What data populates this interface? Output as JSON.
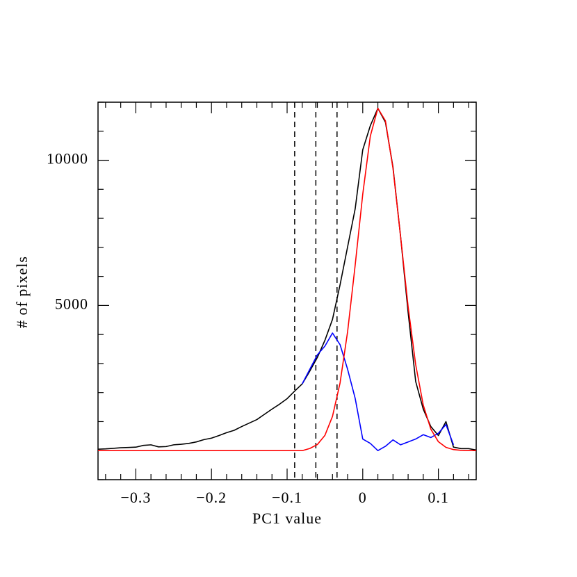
{
  "chart_data": {
    "type": "line",
    "x_label": "PC1 value",
    "y_label": "# of pixels",
    "x": [
      -0.35,
      -0.34,
      -0.33,
      -0.32,
      -0.31,
      -0.3,
      -0.29,
      -0.28,
      -0.27,
      -0.26,
      -0.25,
      -0.24,
      -0.23,
      -0.22,
      -0.21,
      -0.2,
      -0.19,
      -0.18,
      -0.17,
      -0.16,
      -0.15,
      -0.14,
      -0.13,
      -0.12,
      -0.11,
      -0.1,
      -0.09,
      -0.08,
      -0.07,
      -0.06,
      -0.05,
      -0.04,
      -0.03,
      -0.02,
      -0.01,
      0,
      0.01,
      0.02,
      0.03,
      0.04,
      0.05,
      0.06,
      0.07,
      0.08,
      0.09,
      0.1,
      0.11,
      0.12,
      0.13,
      0.14,
      0.15
    ],
    "series": [
      {
        "color": "#000000",
        "values": [
          50,
          60,
          80,
          100,
          110,
          120,
          180,
          200,
          130,
          140,
          200,
          220,
          250,
          300,
          380,
          430,
          520,
          620,
          700,
          830,
          950,
          1070,
          1250,
          1430,
          1600,
          1790,
          2050,
          2300,
          2740,
          3210,
          3800,
          4520,
          5710,
          7020,
          8330,
          10360,
          11190,
          11790,
          11310,
          9760,
          7380,
          4760,
          2380,
          1430,
          830,
          520,
          1000,
          120,
          70,
          70,
          20
        ]
      },
      {
        "color": "#0000ff",
        "values": [
          null,
          null,
          null,
          null,
          null,
          null,
          null,
          null,
          null,
          null,
          null,
          null,
          null,
          null,
          null,
          null,
          null,
          null,
          null,
          null,
          null,
          null,
          null,
          null,
          null,
          null,
          null,
          2300,
          2800,
          3300,
          3600,
          4050,
          3650,
          2800,
          1800,
          400,
          250,
          0,
          150,
          370,
          200,
          300,
          400,
          550,
          450,
          600,
          900,
          200,
          null,
          null,
          null
        ]
      },
      {
        "color": "#ff0000",
        "values": [
          0,
          0,
          0,
          0,
          0,
          0,
          0,
          0,
          0,
          0,
          0,
          0,
          0,
          0,
          0,
          0,
          0,
          0,
          0,
          0,
          0,
          0,
          0,
          0,
          0,
          0,
          0,
          0,
          74,
          210,
          527,
          1180,
          2330,
          4100,
          6390,
          8830,
          10830,
          11790,
          11360,
          9720,
          7380,
          4960,
          2960,
          1570,
          740,
          307,
          114,
          36,
          10,
          0,
          0
        ]
      }
    ],
    "vlines": [
      -0.09,
      -0.062,
      -0.034
    ],
    "xlim": [
      -0.35,
      0.15
    ],
    "ylim": [
      -1000,
      12000
    ],
    "xticks": [
      {
        "value": -0.3,
        "label": "−0.3"
      },
      {
        "value": -0.2,
        "label": "−0.2"
      },
      {
        "value": -0.1,
        "label": "−0.1"
      },
      0,
      0.1
    ],
    "xminorticks": [
      -0.34,
      -0.32,
      -0.28,
      -0.26,
      -0.24,
      -0.22,
      -0.18,
      -0.16,
      -0.14,
      -0.12,
      -0.08,
      -0.06,
      -0.04,
      -0.02,
      0.02,
      0.04,
      0.06,
      0.08,
      0.12,
      0.14
    ],
    "yticks": [
      5000,
      10000
    ],
    "yminorticks": [
      -1000,
      1000,
      2000,
      3000,
      4000,
      6000,
      7000,
      8000,
      9000,
      11000,
      12000
    ]
  }
}
